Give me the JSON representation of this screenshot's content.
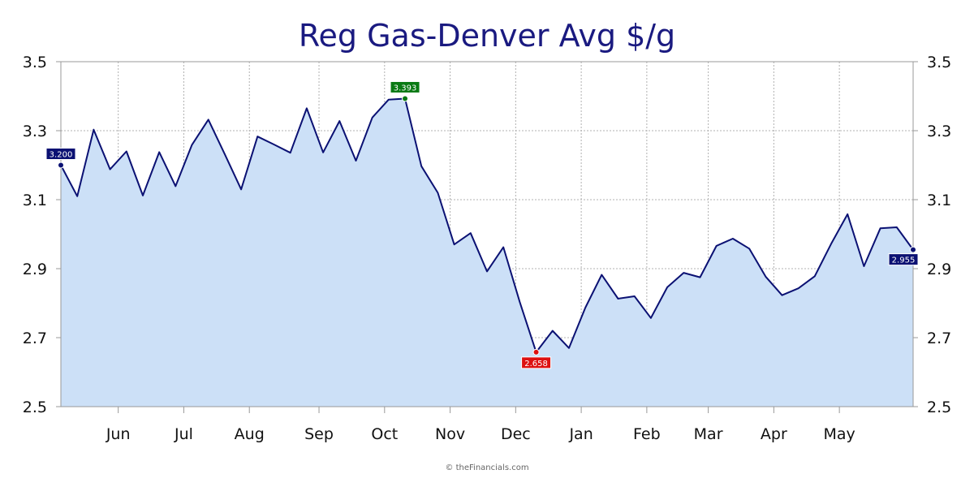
{
  "chart_data": {
    "type": "area",
    "title": "Reg Gas-Denver Avg $/g",
    "xlabel": "",
    "ylabel": "",
    "ylim": [
      2.5,
      3.5
    ],
    "y_ticks": [
      "2.5",
      "2.7",
      "2.9",
      "3.1",
      "3.3",
      "3.5"
    ],
    "y_tick_values": [
      2.5,
      2.7,
      2.9,
      3.1,
      3.3,
      3.5
    ],
    "month_labels": [
      "Jun",
      "Jul",
      "Aug",
      "Sep",
      "Oct",
      "Nov",
      "Dec",
      "Jan",
      "Feb",
      "Mar",
      "Apr",
      "May"
    ],
    "month_start_index": [
      3.5,
      7.5,
      11.5,
      15.75,
      19.75,
      23.75,
      27.75,
      31.75,
      35.75,
      39.5,
      43.5,
      47.5
    ],
    "grid": true,
    "legend": "none",
    "series": [
      {
        "values": [
          3.2,
          3.11,
          3.303,
          3.188,
          3.24,
          3.112,
          3.238,
          3.139,
          3.259,
          3.332,
          3.232,
          3.13,
          3.283,
          3.26,
          3.236,
          3.365,
          3.237,
          3.328,
          3.213,
          3.338,
          3.39,
          3.393,
          3.197,
          3.12,
          2.97,
          3.003,
          2.892,
          2.962,
          2.803,
          2.658,
          2.72,
          2.67,
          2.787,
          2.882,
          2.813,
          2.82,
          2.757,
          2.846,
          2.888,
          2.875,
          2.966,
          2.987,
          2.958,
          2.877,
          2.823,
          2.843,
          2.878,
          2.972,
          3.058,
          2.907,
          3.017,
          3.02,
          2.955
        ]
      }
    ],
    "annotations": [
      {
        "index": 0,
        "label": "3.200",
        "color": "#0b1173",
        "placement": "above"
      },
      {
        "index": 21,
        "label": "3.393",
        "color": "#0a7a14",
        "placement": "above"
      },
      {
        "index": 29,
        "label": "2.658",
        "color": "#dd1111",
        "placement": "below"
      },
      {
        "index": 52,
        "label": "2.955",
        "color": "#0b1173",
        "placement": "below-left"
      }
    ],
    "credit": "© theFinancials.com",
    "colors": {
      "line": "#0b1173",
      "fill": "#cce0f7",
      "title": "#1a1a80",
      "grid": "#b0b0b0",
      "axis": "#999999"
    }
  }
}
